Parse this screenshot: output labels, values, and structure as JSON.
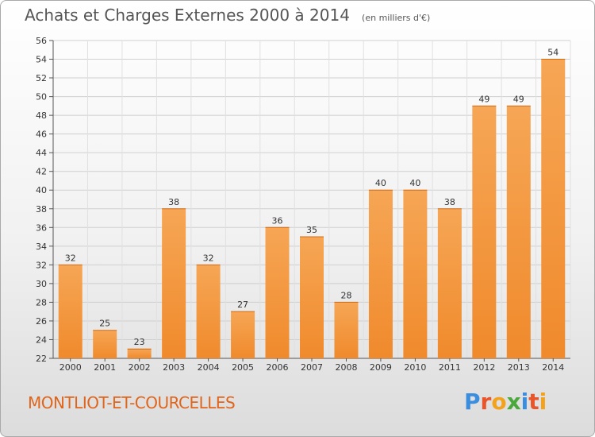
{
  "chart_data": {
    "type": "bar",
    "title": "Achats et Charges Externes 2000 à 2014",
    "subtitle": "(en milliers d'€)",
    "categories": [
      "2000",
      "2001",
      "2002",
      "2003",
      "2004",
      "2005",
      "2006",
      "2007",
      "2008",
      "2009",
      "2010",
      "2011",
      "2012",
      "2013",
      "2014"
    ],
    "values": [
      32,
      25,
      23,
      38,
      32,
      27,
      36,
      35,
      28,
      40,
      40,
      38,
      49,
      49,
      54
    ],
    "ylim": [
      22,
      56
    ],
    "yticks": [
      22,
      24,
      26,
      28,
      30,
      32,
      34,
      36,
      38,
      40,
      42,
      44,
      46,
      48,
      50,
      52,
      54,
      56
    ],
    "grid": true,
    "legend": "none",
    "bar_color": "#f08a2c",
    "bar_color_light": "#f6a655"
  },
  "commune": "MONTLIOT-ET-COURCELLES",
  "logo": {
    "letters": [
      {
        "ch": "P",
        "color": "#3b8ede"
      },
      {
        "ch": "r",
        "color": "#e8552b"
      },
      {
        "ch": "o",
        "color": "#f2a21c"
      },
      {
        "ch": "x",
        "color": "#4aa83c"
      },
      {
        "ch": "i",
        "color": "#3b8ede"
      },
      {
        "ch": "t",
        "color": "#e8552b"
      },
      {
        "ch": "i",
        "color": "#f2a21c"
      }
    ]
  }
}
